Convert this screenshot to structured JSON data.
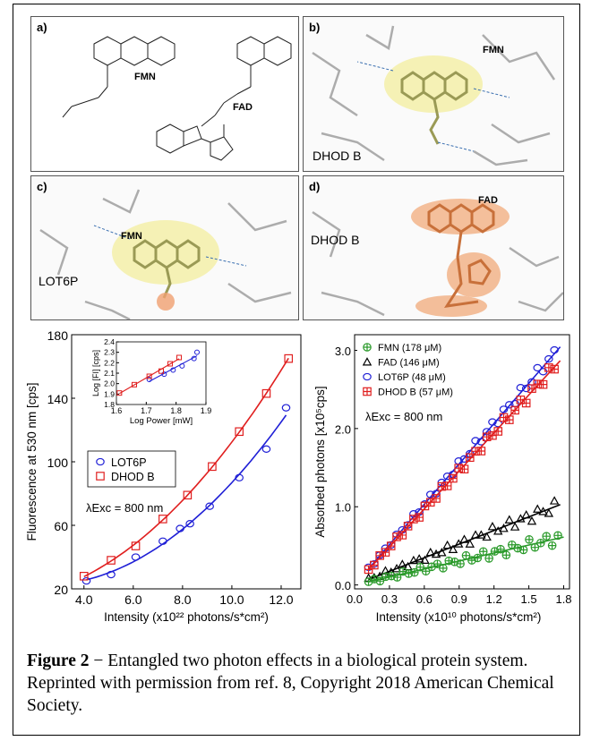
{
  "panels": {
    "a": {
      "label": "a)",
      "fmn": "FMN",
      "fad": "FAD"
    },
    "b": {
      "label": "b)",
      "ligand": "FMN",
      "protein": "DHOD B"
    },
    "c": {
      "label": "c)",
      "ligand": "FMN",
      "protein": "LOT6P"
    },
    "d": {
      "label": "d)",
      "ligand": "FAD",
      "protein": "DHOD B"
    }
  },
  "chart_data": [
    {
      "type": "scatter",
      "xlabel": "Intensity (x10²² photons/s*cm²)",
      "ylabel": "Fluorescence at 530 nm [cps]",
      "xlim": [
        3.5,
        12.8
      ],
      "ylim": [
        20,
        180
      ],
      "xticks": [
        "4.0",
        "6.0",
        "8.0",
        "10.0",
        "12.0"
      ],
      "yticks": [
        "20",
        "60",
        "100",
        "140",
        "180"
      ],
      "annotation": "λExc = 800 nm",
      "legend_position": "center-left",
      "series": [
        {
          "name": "LOT6P",
          "marker": "circle",
          "color": "#1f1fd6",
          "x": [
            4.1,
            5.1,
            6.1,
            7.2,
            7.9,
            8.3,
            9.1,
            10.3,
            11.4,
            12.2
          ],
          "y": [
            25,
            29,
            40,
            50,
            58,
            61,
            72,
            90,
            108,
            134
          ]
        },
        {
          "name": "DHOD B",
          "marker": "square",
          "color": "#e01f1f",
          "x": [
            4.0,
            5.1,
            6.1,
            7.2,
            8.2,
            9.2,
            10.3,
            11.4,
            12.3
          ],
          "y": [
            28,
            38,
            47,
            64,
            79,
            97,
            119,
            143,
            165
          ]
        }
      ],
      "inset": {
        "xlabel": "Log Power [mW]",
        "ylabel": "Log [FI] [cps]",
        "xlim": [
          1.6,
          1.9
        ],
        "ylim": [
          1.8,
          2.4
        ],
        "xticks": [
          "1.6",
          "1.7",
          "1.8",
          "1.9"
        ],
        "yticks": [
          "1.8",
          "1.9",
          "2.0",
          "2.1",
          "2.2",
          "2.3",
          "2.4"
        ],
        "series": [
          {
            "name": "LOT6P",
            "x": [
              1.71,
              1.76,
              1.79,
              1.82,
              1.86,
              1.87
            ],
            "y": [
              2.04,
              2.09,
              2.13,
              2.17,
              2.24,
              2.3
            ]
          },
          {
            "name": "DHOD B",
            "x": [
              1.61,
              1.66,
              1.71,
              1.75,
              1.78,
              1.81
            ],
            "y": [
              1.91,
              1.99,
              2.07,
              2.12,
              2.19,
              2.25
            ]
          }
        ]
      }
    },
    {
      "type": "scatter",
      "xlabel": "Intensity (x10¹⁰ photons/s*cm²)",
      "ylabel": "Absorbed photons [x10⁵cps]",
      "xlim": [
        0.0,
        1.85
      ],
      "ylim": [
        -0.05,
        3.2
      ],
      "xticks": [
        "0.0",
        "0.3",
        "0.6",
        "0.9",
        "1.2",
        "1.5",
        "1.8"
      ],
      "yticks": [
        "0.0",
        "1.0",
        "2.0",
        "3.0"
      ],
      "annotation": "λExc = 800 nm",
      "legend_position": "top-left",
      "series": [
        {
          "name": "FMN (178 μM)",
          "marker": "circle-cross",
          "color": "#2a9a2a",
          "slope": 0.34,
          "x0": 0.12,
          "x1": 1.75
        },
        {
          "name": "FAD (146 μM)",
          "marker": "triangle",
          "color": "#000000",
          "slope": 0.58,
          "x0": 0.12,
          "x1": 1.72
        },
        {
          "name": "LOT6P (48 μM)",
          "marker": "circle",
          "color": "#1f1fd6",
          "slope": 1.72,
          "x0": 0.12,
          "x1": 1.72
        },
        {
          "name": "DHOD B (57 μM)",
          "marker": "square-cross",
          "color": "#e01f1f",
          "slope": 1.62,
          "x0": 0.12,
          "x1": 1.72
        }
      ]
    }
  ],
  "caption": {
    "figure_label": "Figure 2",
    "dash": " − ",
    "text": "Entangled two photon effects in a biological protein system. Reprinted with permission from ref. 8, Copyright 2018 American Chemical Society."
  }
}
